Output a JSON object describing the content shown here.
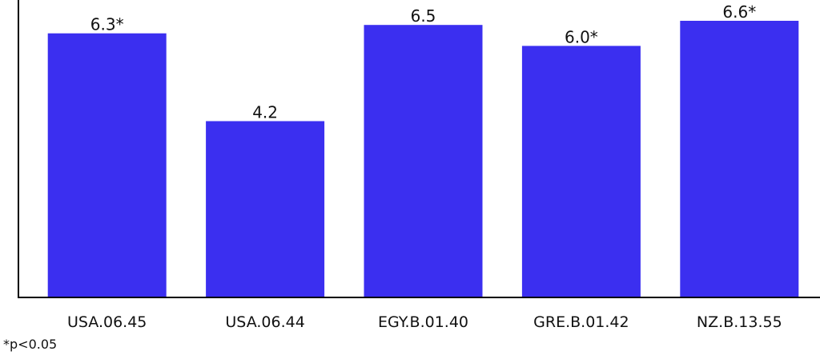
{
  "chart_data": {
    "type": "bar",
    "categories": [
      "USA.06.45",
      "USA.06.44",
      "EGY.B.01.40",
      "GRE.B.01.42",
      "NZ.B.13.55"
    ],
    "values": [
      6.3,
      4.2,
      6.5,
      6.0,
      6.6
    ],
    "value_labels": [
      "6.3*",
      "4.2",
      "6.5",
      "6.0*",
      "6.6*"
    ],
    "bar_color": "#3b2ff0",
    "title": "",
    "xlabel": "",
    "ylabel": "",
    "ylim": [
      0,
      6.6
    ],
    "grid": false,
    "legend": "none",
    "footnote": "*p<0.05"
  }
}
